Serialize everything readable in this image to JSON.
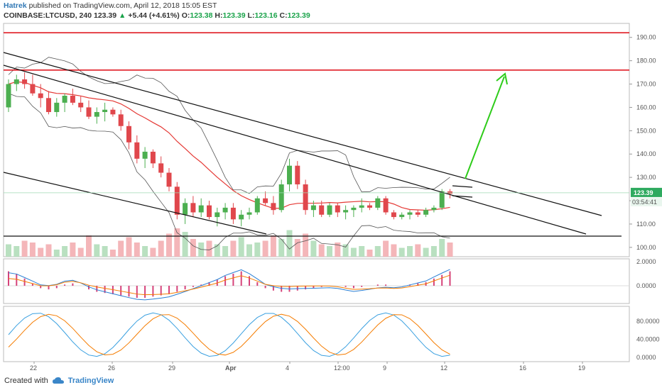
{
  "header": {
    "author": "Hatrek",
    "published": "published on TradingView.com, April 12, 2018 15:05 EST",
    "symbol_line_prefix": "COINBASE:LTCUSD, 240",
    "price": "123.39",
    "change_arrow": "▲",
    "change": "+5.44 (+4.61%)",
    "o_label": "O:",
    "o_value": "123.38",
    "h_label": "H:",
    "h_value": "123.39",
    "l_label": "L:",
    "l_value": "123.16",
    "c_label": "C:",
    "c_value": "123.39"
  },
  "footer": {
    "created_with": "Created with",
    "brand": "TradingView"
  },
  "colors": {
    "up": "#4caf50",
    "down": "#e0474c",
    "ma": "#e53935",
    "bands": "#555555",
    "resistance": "#e01c24",
    "arrow": "#2ecc1a",
    "macd_line": "#2a7fd4",
    "signal_line": "#f57c00",
    "stoch_k": "#3aa0e0",
    "stoch_d": "#f57c00"
  },
  "chart_data": {
    "type": "candlestick",
    "price_axis_ticks": [
      "190.00",
      "180.00",
      "170.00",
      "160.00",
      "150.00",
      "140.00",
      "130.00",
      "120.00",
      "110.00",
      "100.00"
    ],
    "ylim": [
      96,
      196
    ],
    "current_price_label": "123.39",
    "countdown_label": "03:54:41",
    "x_tick_labels": [
      "22",
      "26",
      "29",
      "Apr",
      "4",
      "12:00",
      "9",
      "12",
      "16",
      "19"
    ],
    "resistance_levels": [
      192,
      176
    ],
    "candles": [
      [
        160,
        172,
        158,
        170
      ],
      [
        170,
        174,
        167,
        172
      ],
      [
        172,
        175,
        168,
        170
      ],
      [
        170,
        174,
        165,
        166
      ],
      [
        166,
        170,
        160,
        164
      ],
      [
        164,
        167,
        157,
        158
      ],
      [
        158,
        164,
        156,
        162
      ],
      [
        162,
        166,
        158,
        165
      ],
      [
        165,
        168,
        161,
        162
      ],
      [
        162,
        165,
        158,
        160
      ],
      [
        160,
        163,
        155,
        156
      ],
      [
        156,
        160,
        153,
        158
      ],
      [
        158,
        162,
        154,
        159
      ],
      [
        159,
        160,
        156,
        157
      ],
      [
        157,
        159,
        150,
        152
      ],
      [
        152,
        154,
        142,
        145
      ],
      [
        145,
        148,
        136,
        138
      ],
      [
        138,
        143,
        134,
        141
      ],
      [
        141,
        142,
        134,
        136
      ],
      [
        136,
        139,
        130,
        132
      ],
      [
        132,
        134,
        124,
        126
      ],
      [
        126,
        128,
        112,
        114
      ],
      [
        114,
        121,
        110,
        119
      ],
      [
        119,
        122,
        113,
        115
      ],
      [
        115,
        121,
        113,
        118
      ],
      [
        118,
        120,
        112,
        113
      ],
      [
        113,
        117,
        109,
        115
      ],
      [
        115,
        119,
        112,
        117
      ],
      [
        117,
        119,
        110,
        112
      ],
      [
        112,
        116,
        109,
        114
      ],
      [
        114,
        117,
        112,
        115
      ],
      [
        115,
        122,
        114,
        121
      ],
      [
        121,
        124,
        118,
        119
      ],
      [
        119,
        122,
        114,
        116
      ],
      [
        116,
        129,
        115,
        127
      ],
      [
        127,
        138,
        124,
        135
      ],
      [
        135,
        137,
        125,
        127
      ],
      [
        127,
        129,
        114,
        116
      ],
      [
        116,
        120,
        113,
        118
      ],
      [
        118,
        120,
        113,
        114
      ],
      [
        114,
        119,
        113,
        118
      ],
      [
        118,
        119,
        113,
        115
      ],
      [
        115,
        118,
        112,
        116
      ],
      [
        116,
        118,
        113,
        117
      ],
      [
        117,
        121,
        115,
        118
      ],
      [
        118,
        119,
        116,
        117
      ],
      [
        117,
        122,
        116,
        121
      ],
      [
        121,
        122,
        114,
        115
      ],
      [
        115,
        116,
        112,
        113
      ],
      [
        113,
        115,
        112,
        114
      ],
      [
        114,
        116,
        112,
        115
      ],
      [
        115,
        116,
        113,
        114
      ],
      [
        114,
        117,
        113,
        116
      ],
      [
        116,
        118,
        115,
        117
      ],
      [
        117,
        125,
        116,
        124
      ],
      [
        124,
        125,
        121,
        123
      ]
    ],
    "volumes": [
      7,
      6,
      9,
      8,
      5,
      7,
      4,
      6,
      8,
      5,
      12,
      7,
      6,
      4,
      9,
      11,
      8,
      6,
      5,
      9,
      13,
      16,
      14,
      10,
      8,
      9,
      7,
      6,
      9,
      11,
      7,
      8,
      9,
      12,
      10,
      15,
      10,
      13,
      9,
      7,
      6,
      8,
      7,
      5,
      6,
      4,
      6,
      9,
      7,
      5,
      6,
      7,
      5,
      6,
      10,
      8
    ],
    "macd_axis_ticks": [
      "2.0000",
      "0.0000"
    ],
    "macd_histogram": [
      1.2,
      1.0,
      0.6,
      0.2,
      -0.2,
      -0.3,
      -0.2,
      0.1,
      0.2,
      0.0,
      -0.3,
      -0.5,
      -0.6,
      -0.7,
      -0.8,
      -0.9,
      -1.0,
      -1.0,
      -0.9,
      -0.8,
      -0.7,
      -0.5,
      -0.3,
      -0.1,
      0.1,
      0.3,
      0.5,
      0.8,
      1.0,
      1.2,
      0.8,
      0.3,
      -0.2,
      -0.4,
      -0.5,
      -0.5,
      -0.4,
      -0.3,
      -0.2,
      -0.1,
      0.0,
      0.0,
      -0.1,
      -0.2,
      -0.1,
      0.0,
      0.1,
      0.1,
      0.0,
      0.0,
      0.1,
      0.2,
      0.3,
      0.6,
      0.9,
      1.2
    ],
    "stoch_axis_ticks": [
      "80.0000",
      "40.0000",
      "0.0000"
    ]
  }
}
